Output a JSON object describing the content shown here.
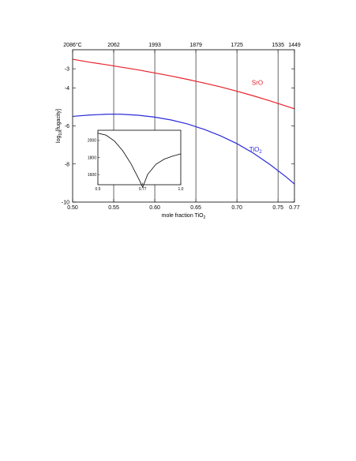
{
  "chart_data": {
    "type": "line",
    "xlabel": "mole fraction TiO",
    "xlabel_sub": "2",
    "ylabel_pre": "log",
    "ylabel_sub": "10",
    "ylabel_post": "[fugacity]",
    "xlim": [
      0.5,
      0.77
    ],
    "ylim": [
      -10,
      -2
    ],
    "x_ticks": [
      0.5,
      0.55,
      0.6,
      0.65,
      0.7,
      0.75,
      0.77
    ],
    "x_tick_labels": [
      "0.50",
      "0.55",
      "0.60",
      "0.65",
      "0.70",
      "0.75",
      "0.77"
    ],
    "y_ticks": [
      -3,
      -4,
      -6,
      -8,
      -10
    ],
    "y_tick_labels": [
      "-3",
      "-4",
      "-6",
      "-8",
      "-10"
    ],
    "top_axis": {
      "unit": "°C",
      "ticks": [
        {
          "x": 0.5,
          "label": "2086°C"
        },
        {
          "x": 0.55,
          "label": "2062"
        },
        {
          "x": 0.6,
          "label": "1993"
        },
        {
          "x": 0.65,
          "label": "1879"
        },
        {
          "x": 0.7,
          "label": "1725"
        },
        {
          "x": 0.75,
          "label": "1535"
        },
        {
          "x": 0.77,
          "label": "1449"
        }
      ]
    },
    "vertical_lines": [
      0.55,
      0.6,
      0.65,
      0.7,
      0.75
    ],
    "series": [
      {
        "name": "SrO",
        "color": "#e8202a",
        "x": [
          0.5,
          0.52,
          0.54,
          0.56,
          0.58,
          0.6,
          0.62,
          0.64,
          0.66,
          0.68,
          0.7,
          0.72,
          0.74,
          0.76,
          0.77
        ],
        "y": [
          -2.5,
          -2.65,
          -2.78,
          -2.92,
          -3.06,
          -3.22,
          -3.38,
          -3.56,
          -3.75,
          -3.95,
          -4.18,
          -4.42,
          -4.68,
          -4.96,
          -5.1
        ]
      },
      {
        "name": "TiO",
        "name_sub": "2",
        "color": "#2b2bd9",
        "x": [
          0.5,
          0.52,
          0.54,
          0.55,
          0.56,
          0.58,
          0.6,
          0.62,
          0.64,
          0.66,
          0.68,
          0.7,
          0.72,
          0.74,
          0.76,
          0.77
        ],
        "y": [
          -5.5,
          -5.43,
          -5.39,
          -5.38,
          -5.39,
          -5.44,
          -5.54,
          -5.69,
          -5.9,
          -6.18,
          -6.52,
          -6.93,
          -7.43,
          -8.02,
          -8.68,
          -9.05
        ]
      }
    ],
    "inset": {
      "type": "line",
      "xlim": [
        0.5,
        1.0
      ],
      "ylim": [
        1480,
        2120
      ],
      "x_ticks": [
        0.5,
        0.77,
        1.0
      ],
      "x_tick_labels": [
        "0.5",
        "0.77",
        "1.0"
      ],
      "y_ticks": [
        1600,
        1800,
        2000
      ],
      "y_tick_labels": [
        "1600",
        "1800",
        "2000"
      ],
      "color": "#000000",
      "x": [
        0.5,
        0.55,
        0.6,
        0.65,
        0.7,
        0.75,
        0.77,
        0.8,
        0.85,
        0.9,
        0.95,
        1.0
      ],
      "y": [
        2086,
        2062,
        1993,
        1879,
        1725,
        1535,
        1449,
        1600,
        1720,
        1780,
        1815,
        1843
      ]
    }
  }
}
